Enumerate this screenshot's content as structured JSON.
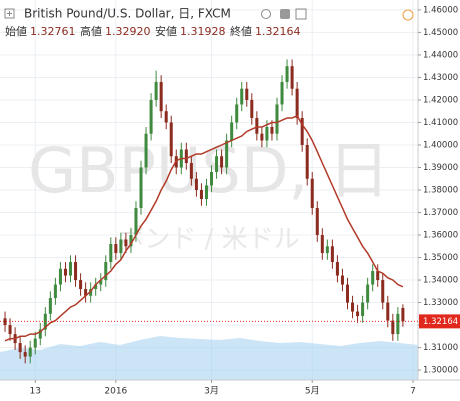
{
  "chart_data": {
    "type": "candlestick",
    "title": "British Pound/U.S. Dollar, 日, FXCM",
    "watermark": "GBPUSD, 日",
    "watermark_sub": "ポンド / 米ドル",
    "ohlc_labels": [
      "始値",
      "高値",
      "安値",
      "終値"
    ],
    "ohlc_values": [
      "1.32761",
      "1.32920",
      "1.31928",
      "1.32164"
    ],
    "up_color": "#3f8a3f",
    "down_color": "#8c2b1f",
    "ma_color": "#b23a28",
    "xlim": [
      -1,
      82
    ],
    "xticks": [
      {
        "value": 6,
        "label": "13"
      },
      {
        "value": 22,
        "label": "2016"
      },
      {
        "value": 41,
        "label": "3月"
      },
      {
        "value": 61,
        "label": "5月"
      },
      {
        "value": 81,
        "label": "7"
      }
    ],
    "ylim": [
      1.2956,
      1.4644
    ],
    "yticks": [
      {
        "value": 1.3,
        "label": "1.30000"
      },
      {
        "value": 1.31,
        "label": "1.31000"
      },
      {
        "value": 1.32,
        "label": "1.32000"
      },
      {
        "value": 1.33,
        "label": "1.33000"
      },
      {
        "value": 1.34,
        "label": "1.34000"
      },
      {
        "value": 1.35,
        "label": "1.35000"
      },
      {
        "value": 1.36,
        "label": "1.36000"
      },
      {
        "value": 1.37,
        "label": "1.37000"
      },
      {
        "value": 1.38,
        "label": "1.38000"
      },
      {
        "value": 1.39,
        "label": "1.39000"
      },
      {
        "value": 1.4,
        "label": "1.40000"
      },
      {
        "value": 1.41,
        "label": "1.41000"
      },
      {
        "value": 1.42,
        "label": "1.42000"
      },
      {
        "value": 1.43,
        "label": "1.43000"
      },
      {
        "value": 1.44,
        "label": "1.44000"
      },
      {
        "value": 1.45,
        "label": "1.45000"
      },
      {
        "value": 1.46,
        "label": "1.46000"
      }
    ],
    "last_price": {
      "value": 1.32164,
      "label": "1.32164",
      "color": "#e0281c"
    },
    "grid": true,
    "open": [
      1.323,
      1.32,
      1.316,
      1.312,
      1.308,
      1.306,
      1.31,
      1.314,
      1.318,
      1.325,
      1.332,
      1.338,
      1.345,
      1.342,
      1.348,
      1.34,
      1.336,
      1.333,
      1.336,
      1.338,
      1.34,
      1.348,
      1.356,
      1.352,
      1.358,
      1.355,
      1.36,
      1.372,
      1.39,
      1.405,
      1.42,
      1.428,
      1.415,
      1.41,
      1.395,
      1.39,
      1.398,
      1.392,
      1.385,
      1.38,
      1.376,
      1.382,
      1.388,
      1.395,
      1.39,
      1.402,
      1.41,
      1.418,
      1.425,
      1.42,
      1.412,
      1.405,
      1.402,
      1.408,
      1.405,
      1.418,
      1.428,
      1.435,
      1.425,
      1.412,
      1.4,
      1.385,
      1.372,
      1.36,
      1.352,
      1.355,
      1.348,
      1.342,
      1.338,
      1.33,
      1.326,
      1.324,
      1.33,
      1.338,
      1.344,
      1.34,
      1.33,
      1.322,
      1.316,
      1.32761
    ],
    "high": [
      1.326,
      1.323,
      1.319,
      1.315,
      1.311,
      1.313,
      1.317,
      1.321,
      1.328,
      1.335,
      1.341,
      1.348,
      1.348,
      1.351,
      1.351,
      1.343,
      1.339,
      1.339,
      1.341,
      1.343,
      1.351,
      1.359,
      1.359,
      1.361,
      1.361,
      1.363,
      1.375,
      1.393,
      1.408,
      1.423,
      1.433,
      1.431,
      1.418,
      1.413,
      1.398,
      1.401,
      1.401,
      1.395,
      1.388,
      1.383,
      1.385,
      1.391,
      1.398,
      1.398,
      1.405,
      1.413,
      1.421,
      1.428,
      1.428,
      1.423,
      1.415,
      1.408,
      1.411,
      1.411,
      1.421,
      1.431,
      1.438,
      1.438,
      1.428,
      1.415,
      1.403,
      1.388,
      1.375,
      1.363,
      1.358,
      1.358,
      1.351,
      1.345,
      1.341,
      1.333,
      1.329,
      1.333,
      1.341,
      1.347,
      1.347,
      1.343,
      1.333,
      1.325,
      1.328,
      1.3292
    ],
    "low": [
      1.317,
      1.313,
      1.309,
      1.305,
      1.303,
      1.303,
      1.307,
      1.311,
      1.315,
      1.322,
      1.329,
      1.335,
      1.339,
      1.339,
      1.337,
      1.333,
      1.33,
      1.33,
      1.333,
      1.335,
      1.337,
      1.345,
      1.349,
      1.349,
      1.352,
      1.352,
      1.357,
      1.369,
      1.387,
      1.402,
      1.417,
      1.412,
      1.407,
      1.392,
      1.387,
      1.387,
      1.389,
      1.382,
      1.377,
      1.373,
      1.373,
      1.379,
      1.385,
      1.387,
      1.387,
      1.399,
      1.407,
      1.415,
      1.417,
      1.409,
      1.402,
      1.399,
      1.399,
      1.402,
      1.402,
      1.415,
      1.425,
      1.422,
      1.409,
      1.397,
      1.382,
      1.369,
      1.357,
      1.349,
      1.349,
      1.345,
      1.339,
      1.335,
      1.327,
      1.323,
      1.321,
      1.321,
      1.327,
      1.335,
      1.337,
      1.327,
      1.319,
      1.313,
      1.313,
      1.31928
    ],
    "close": [
      1.32,
      1.316,
      1.312,
      1.308,
      1.306,
      1.31,
      1.314,
      1.318,
      1.325,
      1.332,
      1.338,
      1.345,
      1.342,
      1.348,
      1.34,
      1.336,
      1.333,
      1.336,
      1.338,
      1.34,
      1.348,
      1.356,
      1.352,
      1.358,
      1.355,
      1.36,
      1.372,
      1.39,
      1.405,
      1.42,
      1.428,
      1.415,
      1.41,
      1.395,
      1.39,
      1.398,
      1.392,
      1.385,
      1.38,
      1.376,
      1.382,
      1.388,
      1.395,
      1.39,
      1.402,
      1.41,
      1.418,
      1.425,
      1.42,
      1.412,
      1.405,
      1.402,
      1.408,
      1.405,
      1.418,
      1.428,
      1.435,
      1.425,
      1.412,
      1.4,
      1.385,
      1.372,
      1.36,
      1.352,
      1.355,
      1.348,
      1.342,
      1.338,
      1.33,
      1.326,
      1.324,
      1.33,
      1.338,
      1.344,
      1.34,
      1.33,
      1.322,
      1.316,
      1.325,
      1.32164
    ],
    "ma": [
      1.313,
      1.314,
      1.314,
      1.315,
      1.315,
      1.316,
      1.316,
      1.317,
      1.319,
      1.321,
      1.322,
      1.324,
      1.326,
      1.328,
      1.329,
      1.331,
      1.333,
      1.335,
      1.338,
      1.34,
      1.342,
      1.344,
      1.347,
      1.349,
      1.353,
      1.356,
      1.36,
      1.364,
      1.367,
      1.371,
      1.375,
      1.38,
      1.384,
      1.389,
      1.393,
      1.394,
      1.394,
      1.395,
      1.396,
      1.396,
      1.397,
      1.398,
      1.399,
      1.4,
      1.401,
      1.402,
      1.403,
      1.404,
      1.406,
      1.407,
      1.408,
      1.408,
      1.409,
      1.41,
      1.41,
      1.411,
      1.412,
      1.412,
      1.413,
      1.409,
      1.406,
      1.402,
      1.397,
      1.392,
      1.387,
      1.382,
      1.377,
      1.372,
      1.367,
      1.363,
      1.359,
      1.355,
      1.352,
      1.348,
      1.344,
      1.343,
      1.341,
      1.34,
      1.338,
      1.337
    ]
  }
}
